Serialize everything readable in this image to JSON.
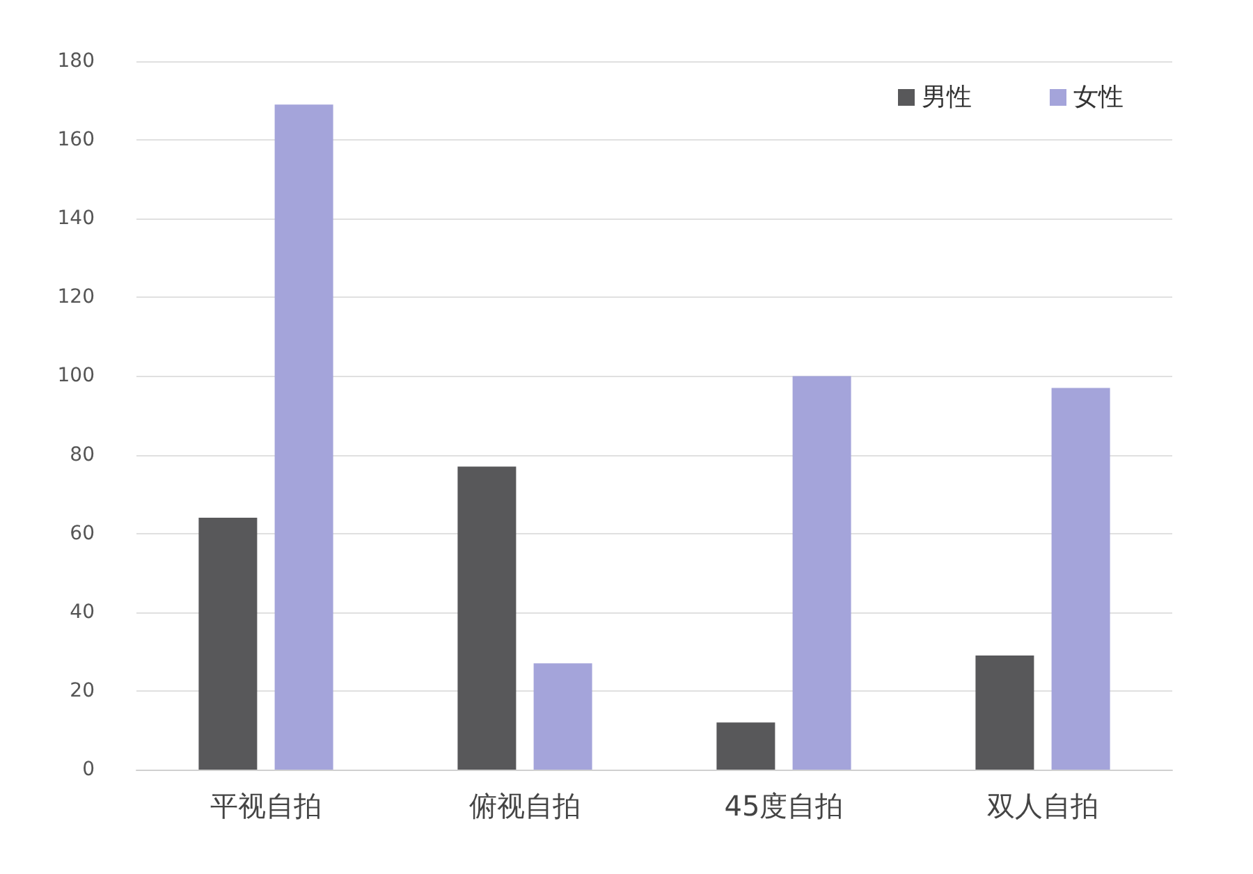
{
  "chart_data": {
    "type": "bar",
    "categories": [
      "平视自拍",
      "俯视自拍",
      "45度自拍",
      "双人自拍"
    ],
    "series": [
      {
        "name": "男性",
        "color": "#58585a",
        "values": [
          64,
          77,
          12,
          29
        ]
      },
      {
        "name": "女性",
        "color": "#a4a4da",
        "values": [
          169,
          27,
          100,
          97
        ]
      }
    ],
    "ylim": [
      0,
      180
    ],
    "yticks": [
      0,
      20,
      40,
      60,
      80,
      100,
      120,
      140,
      160,
      180
    ],
    "grid": "y",
    "legend": "top right"
  }
}
